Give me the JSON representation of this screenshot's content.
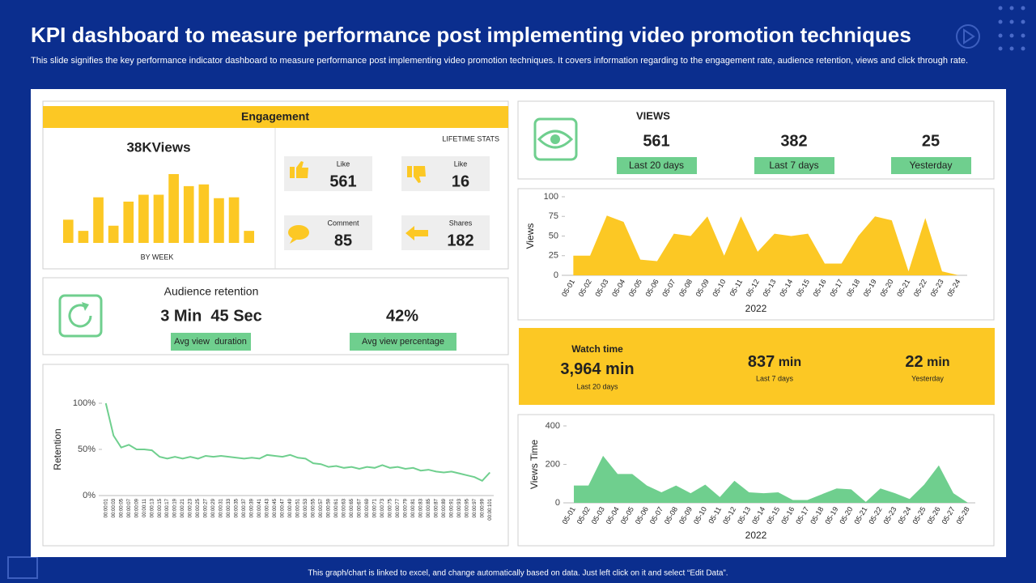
{
  "header": {
    "title": "KPI dashboard to measure performance post implementing video promotion techniques",
    "subtitle": "This slide signifies the key performance indicator dashboard to measure performance post implementing video promotion techniques. It covers information regarding to the engagement rate, audience retention, views and click through rate."
  },
  "engagement": {
    "title": "Engagement",
    "headline": "38KViews",
    "chart_caption": "BY WEEK",
    "stats_title": "LIFETIME STATS",
    "stats": [
      {
        "label": "Like",
        "value": "561"
      },
      {
        "label": "Like",
        "value": "16"
      },
      {
        "label": "Comment",
        "value": "85"
      },
      {
        "label": "Shares",
        "value": "182"
      }
    ]
  },
  "retention": {
    "title": "Audience retention",
    "items": [
      {
        "value": "3 Min  45 Sec",
        "label": "Avg view  duration"
      },
      {
        "value": "42%",
        "label": "Avg view percentage"
      }
    ]
  },
  "views": {
    "title": "VIEWS",
    "items": [
      {
        "value": "561",
        "label": "Last 20 days"
      },
      {
        "value": "382",
        "label": "Last 7 days"
      },
      {
        "value": "25",
        "label": "Yesterday"
      }
    ]
  },
  "watch_time": {
    "title": "Watch time",
    "items": [
      {
        "value": "3,964",
        "unit": "min",
        "label": "Last 20 days"
      },
      {
        "value": "837",
        "unit": "min",
        "label": "Last 7 days"
      },
      {
        "value": "22",
        "unit": "min",
        "label": "Yesterday"
      }
    ]
  },
  "footer": "This graph/chart is linked to excel, and change automatically based on data. Just left click on it and select “Edit Data”.",
  "chart_data": [
    {
      "type": "bar",
      "color": "#fcc824",
      "values": [
        27,
        14,
        53,
        20,
        48,
        56,
        56,
        80,
        66,
        68,
        52,
        53,
        14
      ]
    },
    {
      "type": "area",
      "color": "#fcc824",
      "ylabel": "Views",
      "xlabel": "2022",
      "categories": [
        "05-01",
        "05-02",
        "05-03",
        "05-04",
        "05-05",
        "05-06",
        "05-07",
        "05-08",
        "05-09",
        "05-10",
        "05-11",
        "05-12",
        "05-13",
        "05-14",
        "05-15",
        "05-16",
        "05-17",
        "05-18",
        "05-19",
        "05-20",
        "05-21",
        "05-22",
        "05-23",
        "05-24"
      ],
      "values": [
        25,
        25,
        76,
        68,
        20,
        18,
        53,
        50,
        75,
        25,
        75,
        30,
        53,
        50,
        53,
        15,
        15,
        50,
        75,
        70,
        5,
        73,
        5,
        0
      ],
      "ylim": [
        0,
        100
      ],
      "yticks": [
        0,
        25,
        50,
        75,
        100
      ]
    },
    {
      "type": "line",
      "color": "#6fcf8e",
      "ylabel": "Retention",
      "categories": [
        "00:00:01",
        "00:00:03",
        "00:00:05",
        "00:00:07",
        "00:00:09",
        "00:00:11",
        "00:00:13",
        "00:00:15",
        "00:00:17",
        "00:00:19",
        "00:00:21",
        "00:00:23",
        "00:00:25",
        "00:00:27",
        "00:00:29",
        "00:00:31",
        "00:00:33",
        "00:00:35",
        "00:00:37",
        "00:00:39",
        "00:00:41",
        "00:00:43",
        "00:00:45",
        "00:00:47",
        "00:00:49",
        "00:00:51",
        "00:00:53",
        "00:00:55",
        "00:00:57",
        "00:00:59",
        "00:00:61",
        "00:00:63",
        "00:00:65",
        "00:00:67",
        "00:00:69",
        "00:00:71",
        "00:00:73",
        "00:00:75",
        "00:00:77",
        "00:00:79",
        "00:00:81",
        "00:00:83",
        "00:00:85",
        "00:00:87",
        "00:00:89",
        "00:00:91",
        "00:00:93",
        "00:00:95",
        "00:00:97",
        "00:00:99",
        "00:00:101"
      ],
      "values": [
        100,
        65,
        52,
        55,
        50,
        50,
        49,
        42,
        40,
        42,
        40,
        42,
        40,
        43,
        42,
        43,
        42,
        41,
        40,
        41,
        40,
        44,
        43,
        42,
        44,
        41,
        40,
        35,
        34,
        31,
        32,
        30,
        31,
        29,
        31,
        30,
        33,
        30,
        31,
        29,
        30,
        27,
        28,
        26,
        25,
        26,
        24,
        22,
        20,
        16,
        25
      ],
      "ylim": [
        0,
        100
      ],
      "yticks": [
        {
          "value": 0,
          "label": "0%"
        },
        {
          "value": 50,
          "label": "50%"
        },
        {
          "value": 100,
          "label": "100%"
        }
      ]
    },
    {
      "type": "area",
      "color": "#6fcf8e",
      "ylabel": "Views Time",
      "xlabel": "2022",
      "categories": [
        "05-01",
        "05-02",
        "05-03",
        "05-04",
        "05-05",
        "05-06",
        "05-07",
        "05-08",
        "05-09",
        "05-10",
        "05-11",
        "05-12",
        "05-13",
        "05-14",
        "05-15",
        "05-16",
        "05-17",
        "05-18",
        "05-19",
        "05-20",
        "05-21",
        "05-22",
        "05-23",
        "05-24",
        "05-25",
        "05-26",
        "05-27",
        "05-28"
      ],
      "values": [
        90,
        90,
        245,
        150,
        150,
        90,
        55,
        90,
        50,
        95,
        30,
        115,
        55,
        50,
        55,
        15,
        15,
        45,
        75,
        70,
        5,
        75,
        50,
        20,
        95,
        195,
        50,
        0
      ],
      "ylim": [
        0,
        400
      ],
      "yticks": [
        0,
        200,
        400
      ]
    }
  ]
}
